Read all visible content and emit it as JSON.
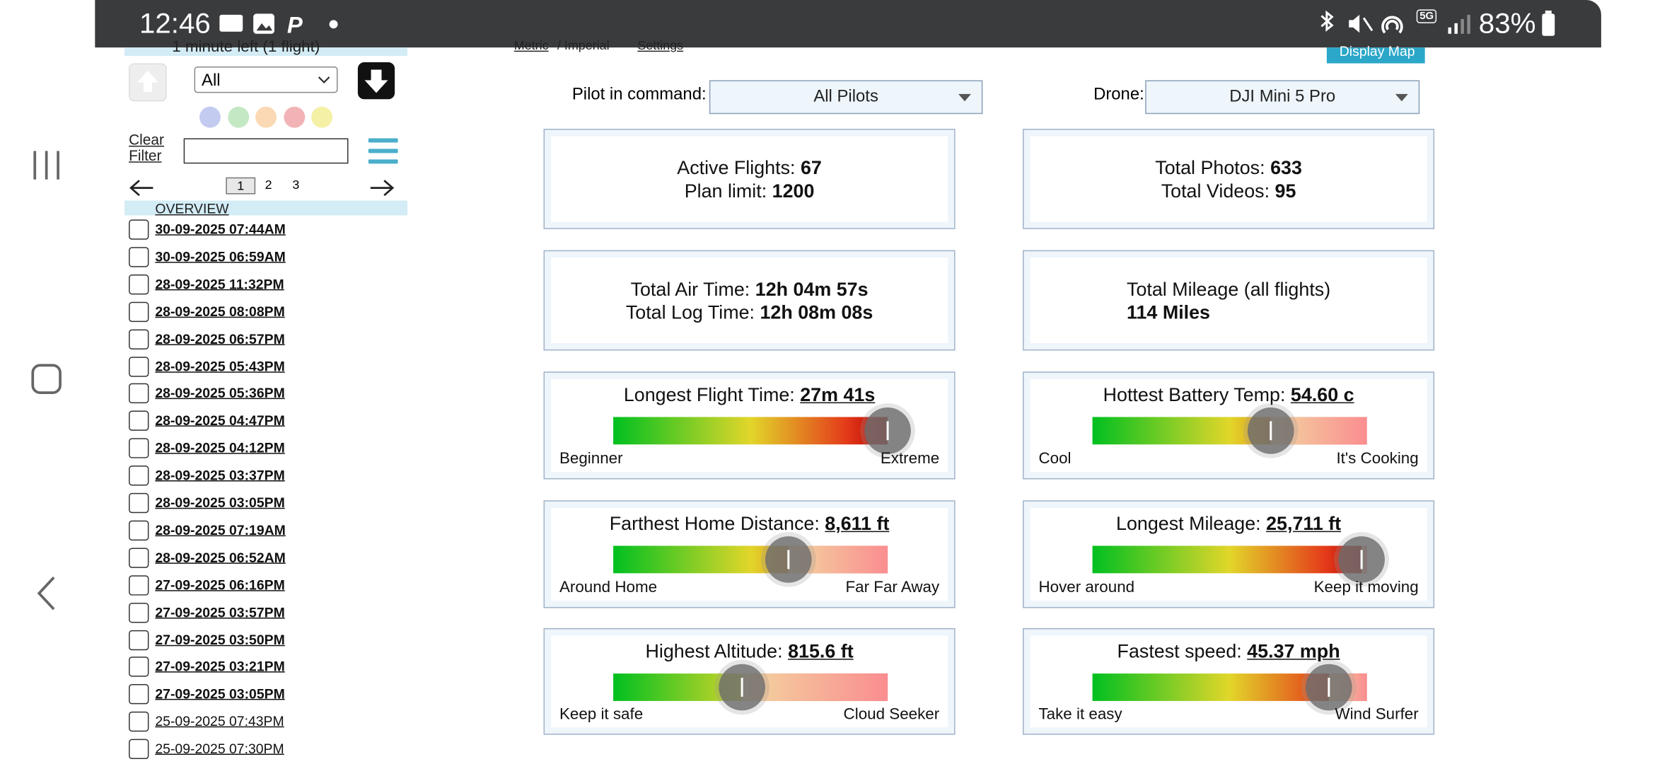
{
  "status": {
    "time": "12:46",
    "network": "5G",
    "battery": "83%"
  },
  "sidebar": {
    "header": "1 minute left (1 flight)",
    "filter_select": "All",
    "clear_filter": "Clear Filter",
    "pages": [
      "1",
      "2",
      "3"
    ],
    "overview": "OVERVIEW",
    "flights": [
      "30-09-2025 07:44AM",
      "30-09-2025 06:59AM",
      "28-09-2025 11:32PM",
      "28-09-2025 08:08PM",
      "28-09-2025 06:57PM",
      "28-09-2025 05:43PM",
      "28-09-2025 05:36PM",
      "28-09-2025 04:47PM",
      "28-09-2025 04:12PM",
      "28-09-2025 03:37PM",
      "28-09-2025 03:05PM",
      "28-09-2025 07:19AM",
      "28-09-2025 06:52AM",
      "27-09-2025 06:16PM",
      "27-09-2025 03:57PM",
      "27-09-2025 03:50PM",
      "27-09-2025 03:21PM",
      "27-09-2025 03:05PM",
      "25-09-2025 07:43PM",
      "25-09-2025 07:30PM"
    ]
  },
  "top": {
    "metric": "Metric",
    "imperial": "/ Imperial",
    "settings": "Settings",
    "display_map": "Display Map"
  },
  "filters": {
    "pilot_label": "Pilot in command:",
    "pilot_value": "All Pilots",
    "drone_label": "Drone:",
    "drone_value": "DJI Mini 5 Pro"
  },
  "stats": [
    {
      "lines": [
        {
          "label": "Active Flights:",
          "value": "67"
        },
        {
          "label": "Plan limit:",
          "value": "1200"
        }
      ]
    },
    {
      "lines": [
        {
          "label": "Total Photos:",
          "value": "633"
        },
        {
          "label": "Total Videos:",
          "value": "95"
        }
      ]
    },
    {
      "lines": [
        {
          "label": "Total Air Time:",
          "value": "12h 04m 57s"
        },
        {
          "label": "Total Log Time:",
          "value": "12h 08m 08s"
        }
      ]
    },
    {
      "lines": [
        {
          "label": "Total Mileage (all flights)",
          "value": "114 Miles"
        }
      ]
    }
  ],
  "gauges": [
    {
      "title": "Longest Flight Time:",
      "value": "27m 41s",
      "low": "Beginner",
      "high": "Extreme"
    },
    {
      "title": "Hottest Battery Temp:",
      "value": "54.60 c",
      "low": "Cool",
      "high": "It's Cooking"
    },
    {
      "title": "Farthest Home Distance:",
      "value": "8,611 ft",
      "low": "Around Home",
      "high": "Far Far Away"
    },
    {
      "title": "Longest Mileage:",
      "value": "25,711 ft",
      "low": "Hover around",
      "high": "Keep it moving"
    },
    {
      "title": "Highest Altitude:",
      "value": "815.6 ft",
      "low": "Keep it safe",
      "high": "Cloud Seeker"
    },
    {
      "title": "Fastest speed:",
      "value": "45.37 mph",
      "low": "Take it easy",
      "high": "Wind Surfer"
    }
  ]
}
